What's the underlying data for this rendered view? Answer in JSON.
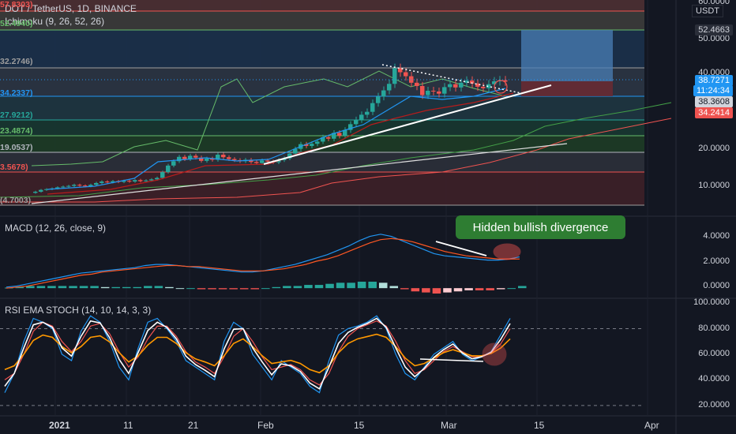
{
  "header": {
    "symbol_title": "DOT / TetherUS, 1D, BINANCE",
    "ichimoku_label": "Ichimoku (9, 26, 52, 26)",
    "currency_badge": "USDT"
  },
  "fib_levels_left": [
    {
      "text": "57.8303)",
      "color": "#ef5350"
    },
    {
      "text": "52.4940)",
      "color": "#66bb6a"
    },
    {
      "text": "32.2746)",
      "color": "#9e9e9e"
    },
    {
      "text": "34.2337)",
      "color": "#2196f3"
    },
    {
      "text": "27.9212)",
      "color": "#26a69a"
    },
    {
      "text": "23.4874)",
      "color": "#66bb6a"
    },
    {
      "text": "19.0537)",
      "color": "#b2b5be"
    },
    {
      "text": "3.5678)",
      "color": "#ef5350"
    },
    {
      "text": "(4.7003)",
      "color": "#9e9e9e"
    }
  ],
  "price_axis": {
    "ticks": [
      "60.0000",
      "50.0000",
      "40.0000",
      "20.0000",
      "10.0000"
    ],
    "boxes": [
      {
        "text": "52.4663",
        "bg": "#2a2e39",
        "fg": "#d1d4dc"
      },
      {
        "text": "38.7271",
        "bg": "#2196f3",
        "fg": "#ffffff"
      },
      {
        "text": "11:24:34",
        "bg": "#2196f3",
        "fg": "#ffffff"
      },
      {
        "text": "38.3608",
        "bg": "#d1d4dc",
        "fg": "#131722"
      },
      {
        "text": "34.2414",
        "bg": "#ef5350",
        "fg": "#ffffff"
      }
    ]
  },
  "macd_panel": {
    "title": "MACD (12, 26, close, 9)",
    "ticks": [
      "4.0000",
      "2.0000",
      "0.0000"
    ],
    "annotation": "Hidden bullish divergence"
  },
  "stoch_panel": {
    "title": "RSI EMA STOCH (14, 10, 14, 3, 3)",
    "ticks": [
      "100.0000",
      "80.0000",
      "60.0000",
      "40.0000",
      "20.0000"
    ]
  },
  "time_axis": [
    "2021",
    "11",
    "21",
    "Feb",
    "15",
    "Mar",
    "15",
    "Apr"
  ],
  "colors": {
    "up": "#26a69a",
    "down": "#ef5350",
    "bg": "#131722",
    "macd": "#2196f3",
    "signal": "#ff5722"
  },
  "chart_data": [
    {
      "type": "candlestick",
      "title": "DOT / TetherUS, 1D, BINANCE",
      "ylim": [
        4.7,
        60
      ],
      "close": [
        8.4,
        8.9,
        9.1,
        9.3,
        9.6,
        9.8,
        10.0,
        10.3,
        10.1,
        9.9,
        10.3,
        10.8,
        11.2,
        11.0,
        11.3,
        11.1,
        11.4,
        11.2,
        11.6,
        11.3,
        11.5,
        11.8,
        12.2,
        13.8,
        15.6,
        16.8,
        18.0,
        17.4,
        18.3,
        17.8,
        16.9,
        17.5,
        17.2,
        18.6,
        17.9,
        17.4,
        17.1,
        16.8,
        17.2,
        16.6,
        16.3,
        17.0,
        16.7,
        16.5,
        17.1,
        17.6,
        18.9,
        20.2,
        21.5,
        21.0,
        21.6,
        22.2,
        23.4,
        23.0,
        24.6,
        23.8,
        25.4,
        27.0,
        28.2,
        29.6,
        30.4,
        32.8,
        34.6,
        36.3,
        38.1,
        42.4,
        41.3,
        40.2,
        38.4,
        37.5,
        35.0,
        36.2,
        36.0,
        35.4,
        37.2,
        38.0,
        37.1,
        38.4,
        39.0,
        38.2,
        37.3,
        36.9,
        38.0,
        38.8,
        39.1,
        38.7
      ]
    },
    {
      "type": "line",
      "title": "MACD (12, 26, close, 9)",
      "series": [
        {
          "name": "MACD",
          "values": [
            0.1,
            0.2,
            0.4,
            0.6,
            0.8,
            1.0,
            1.2,
            1.4,
            1.5,
            1.6,
            1.7,
            1.8,
            1.9,
            2.1,
            2.2,
            2.2,
            2.1,
            2.0,
            1.9,
            1.8,
            1.7,
            1.6,
            1.5,
            1.5,
            1.6,
            1.8,
            2.0,
            2.2,
            2.5,
            2.8,
            3.1,
            3.5,
            3.9,
            4.4,
            4.8,
            5.0,
            4.8,
            4.4,
            4.0,
            3.6,
            3.2,
            3.0,
            2.9,
            2.8,
            2.7,
            2.6,
            2.6,
            2.7,
            2.9
          ]
        },
        {
          "name": "Signal",
          "values": [
            0.0,
            0.1,
            0.2,
            0.4,
            0.6,
            0.8,
            1.0,
            1.2,
            1.3,
            1.5,
            1.6,
            1.7,
            1.8,
            1.9,
            2.0,
            2.1,
            2.1,
            2.0,
            2.0,
            1.9,
            1.8,
            1.7,
            1.6,
            1.6,
            1.6,
            1.7,
            1.8,
            2.0,
            2.2,
            2.5,
            2.7,
            3.0,
            3.4,
            3.8,
            4.2,
            4.5,
            4.6,
            4.5,
            4.3,
            4.0,
            3.7,
            3.4,
            3.2,
            3.0,
            2.9,
            2.8,
            2.7,
            2.7,
            2.7
          ]
        }
      ],
      "histogram": [
        0.05,
        0.1,
        0.2,
        0.2,
        0.2,
        0.2,
        0.2,
        0.2,
        0.2,
        0.1,
        0.1,
        0.1,
        0.1,
        0.2,
        0.2,
        0.1,
        0.0,
        0.0,
        -0.1,
        -0.1,
        -0.1,
        -0.1,
        -0.1,
        -0.1,
        0.0,
        0.1,
        0.2,
        0.2,
        0.3,
        0.3,
        0.4,
        0.5,
        0.5,
        0.6,
        0.6,
        0.5,
        0.2,
        -0.1,
        -0.3,
        -0.4,
        -0.5,
        -0.4,
        -0.3,
        -0.2,
        -0.2,
        -0.2,
        -0.1,
        0.0,
        0.2
      ],
      "ylim": [
        -0.5,
        5.5
      ]
    },
    {
      "type": "line",
      "title": "RSI EMA STOCH (14, 10, 14, 3, 3)",
      "series": [
        {
          "name": "K",
          "values": [
            30,
            45,
            70,
            88,
            85,
            80,
            60,
            55,
            78,
            90,
            85,
            70,
            50,
            40,
            65,
            85,
            88,
            80,
            70,
            55,
            50,
            45,
            40,
            70,
            85,
            80,
            60,
            50,
            40,
            55,
            50,
            45,
            35,
            30,
            55,
            75,
            80,
            82,
            85,
            90,
            80,
            60,
            45,
            40,
            50,
            60,
            65,
            70,
            60,
            55,
            58,
            62,
            75,
            88
          ]
        },
        {
          "name": "D",
          "values": [
            40,
            45,
            60,
            78,
            85,
            82,
            70,
            62,
            70,
            82,
            84,
            76,
            62,
            50,
            58,
            72,
            82,
            82,
            74,
            62,
            54,
            50,
            45,
            58,
            74,
            80,
            70,
            58,
            48,
            50,
            52,
            48,
            40,
            36,
            45,
            62,
            74,
            80,
            83,
            86,
            82,
            70,
            55,
            45,
            48,
            55,
            62,
            66,
            62,
            58,
            58,
            61,
            68,
            80
          ]
        }
      ],
      "ylim": [
        15,
        100
      ]
    }
  ]
}
